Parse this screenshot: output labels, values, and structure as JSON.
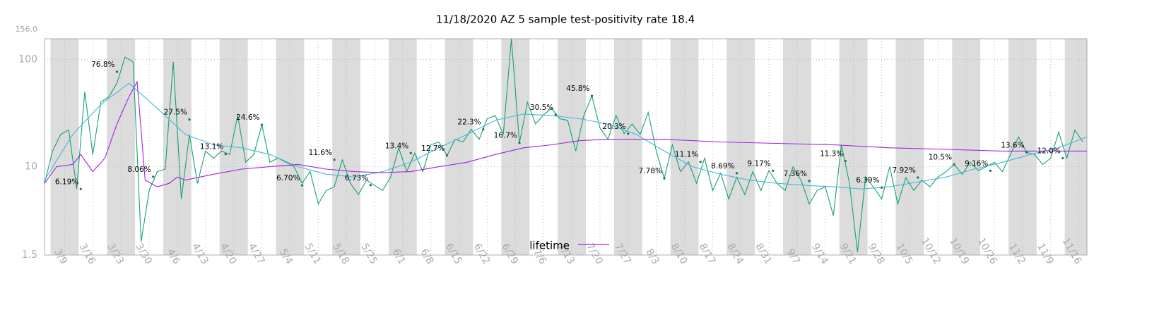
{
  "chart_data": {
    "type": "line",
    "title": "11/18/2020 AZ 5 sample test-positivity rate 18.4",
    "log_y": true,
    "grid": true,
    "legend": "bottom",
    "xlim": [
      "3/4",
      "11/18"
    ],
    "xticks": [
      "3/9",
      "3/16",
      "3/23",
      "3/30",
      "4/6",
      "4/13",
      "4/20",
      "4/27",
      "5/4",
      "5/11",
      "5/18",
      "5/25",
      "6/1",
      "6/8",
      "6/15",
      "6/22",
      "6/29",
      "7/6",
      "7/13",
      "7/20",
      "7/27",
      "8/3",
      "8/10",
      "8/17",
      "8/24",
      "8/31",
      "9/7",
      "9/14",
      "9/21",
      "9/28",
      "10/5",
      "10/12",
      "10/19",
      "10/26",
      "11/2",
      "11/9",
      "11/16"
    ],
    "ylim": [
      1.5,
      156
    ],
    "yticks": [
      1.5,
      10,
      100,
      {
        "value": 156,
        "label": "156.0"
      }
    ],
    "series": [
      {
        "color": "#14a07a",
        "x": [
          "3/4",
          "3/6",
          "3/8",
          "3/10",
          "3/12",
          "3/14",
          "3/16",
          "3/18",
          "3/20",
          "3/22",
          "3/24",
          "3/26",
          "3/28",
          "3/30",
          "4/1",
          "4/3",
          "4/5",
          "4/7",
          "4/9",
          "4/11",
          "4/13",
          "4/15",
          "4/17",
          "4/19",
          "4/21",
          "4/23",
          "4/25",
          "4/27",
          "4/29",
          "5/1",
          "5/3",
          "5/5",
          "5/7",
          "5/9",
          "5/11",
          "5/13",
          "5/15",
          "5/17",
          "5/19",
          "5/21",
          "5/23",
          "5/25",
          "5/27",
          "5/29",
          "5/31",
          "6/2",
          "6/4",
          "6/6",
          "6/8",
          "6/10",
          "6/12",
          "6/14",
          "6/16",
          "6/18",
          "6/20",
          "6/22",
          "6/24",
          "6/26",
          "6/28",
          "6/30",
          "7/2",
          "7/4",
          "7/6",
          "7/8",
          "7/10",
          "7/12",
          "7/14",
          "7/16",
          "7/18",
          "7/20",
          "7/22",
          "7/24",
          "7/26",
          "7/28",
          "7/30",
          "8/1",
          "8/3",
          "8/5",
          "8/7",
          "8/9",
          "8/11",
          "8/13",
          "8/15",
          "8/17",
          "8/19",
          "8/21",
          "8/23",
          "8/25",
          "8/27",
          "8/29",
          "8/31",
          "9/2",
          "9/4",
          "9/6",
          "9/8",
          "9/10",
          "9/12",
          "9/14",
          "9/16",
          "9/18",
          "9/20",
          "9/22",
          "9/24",
          "9/26",
          "9/28",
          "9/30",
          "10/2",
          "10/4",
          "10/6",
          "10/8",
          "10/10",
          "10/12",
          "10/14",
          "10/16",
          "10/18",
          "10/20",
          "10/22",
          "10/24",
          "10/26",
          "10/28",
          "10/30",
          "11/1",
          "11/3",
          "11/5",
          "11/7",
          "11/9",
          "11/11",
          "11/13",
          "11/15",
          "11/17"
        ],
        "values": [
          7,
          14,
          20,
          22,
          6.2,
          50,
          13,
          40,
          45,
          60,
          105,
          95,
          2.0,
          6,
          9,
          9.5,
          95,
          5,
          20,
          7,
          14,
          12,
          14,
          13,
          30,
          11,
          13,
          24.6,
          11,
          12,
          11,
          10,
          7,
          9,
          4.5,
          6,
          6.5,
          11.6,
          7,
          5.5,
          7.5,
          6.7,
          6,
          8,
          15,
          9,
          13.4,
          9,
          16,
          17,
          12.7,
          18,
          17,
          22.3,
          18,
          28,
          30,
          20,
          156,
          16.7,
          40,
          25,
          30.5,
          35,
          28,
          27,
          14,
          30,
          45.8,
          23,
          18,
          30,
          20.3,
          25,
          20,
          32,
          14,
          7.8,
          16,
          9,
          11.1,
          7,
          12,
          6,
          8.7,
          5,
          8,
          5.5,
          9,
          6,
          9.2,
          7,
          6,
          10,
          7.4,
          4.5,
          6,
          6.5,
          3.5,
          16,
          7,
          1.6,
          8,
          6.4,
          5,
          10,
          4.5,
          7.9,
          6,
          7.5,
          6.5,
          8,
          9,
          10.5,
          8.5,
          11,
          9.2,
          10,
          11,
          9,
          13,
          19,
          13.6,
          13,
          10.5,
          12,
          21,
          12,
          22,
          17
        ]
      },
      {
        "color": "#45b8e0",
        "x": [
          "3/4",
          "3/11",
          "3/18",
          "3/25",
          "4/1",
          "4/8",
          "4/15",
          "4/22",
          "4/29",
          "5/6",
          "5/13",
          "5/20",
          "5/27",
          "6/3",
          "6/10",
          "6/17",
          "6/24",
          "7/1",
          "7/8",
          "7/15",
          "7/22",
          "7/29",
          "8/5",
          "8/12",
          "8/19",
          "8/26",
          "9/2",
          "9/9",
          "9/16",
          "9/23",
          "9/30",
          "10/7",
          "10/14",
          "10/21",
          "10/28",
          "11/4",
          "11/11",
          "11/18"
        ],
        "values": [
          7.5,
          20,
          38,
          60,
          35,
          20,
          16,
          15,
          13,
          10,
          8.5,
          8,
          9,
          11,
          15,
          20,
          27,
          31,
          30,
          28,
          25,
          20,
          14,
          10,
          8.5,
          7.5,
          7,
          6.7,
          6.5,
          6.2,
          6.5,
          7.2,
          8,
          9.5,
          11,
          13,
          15,
          19
        ]
      },
      {
        "name": "lifetime",
        "color": "#a020e0",
        "x": [
          "3/4",
          "3/7",
          "3/11",
          "3/13",
          "3/16",
          "3/19",
          "3/22",
          "3/25",
          "3/27",
          "3/29",
          "4/1",
          "4/4",
          "4/6",
          "4/8",
          "4/15",
          "4/22",
          "4/29",
          "5/6",
          "5/13",
          "5/20",
          "5/27",
          "6/3",
          "6/10",
          "6/17",
          "6/24",
          "7/1",
          "7/8",
          "7/15",
          "7/22",
          "7/29",
          "8/5",
          "8/19",
          "9/2",
          "9/16",
          "9/30",
          "10/14",
          "10/28",
          "11/18"
        ],
        "values": [
          7,
          10,
          10.5,
          13,
          9,
          12,
          25,
          45,
          62,
          7.5,
          6.5,
          7,
          8,
          7.5,
          8.5,
          9.5,
          10,
          10.5,
          9.5,
          9,
          8.8,
          9,
          10,
          11,
          13,
          15,
          16,
          17.5,
          18,
          18,
          18,
          17,
          16.5,
          16,
          15,
          14.5,
          14,
          14
        ]
      }
    ],
    "annotations": [
      {
        "x": "3/13",
        "value": 6.19,
        "label": "6.19%"
      },
      {
        "x": "3/22",
        "value": 76.8,
        "label": "76.8%"
      },
      {
        "x": "3/31",
        "value": 8.06,
        "label": "8.06%"
      },
      {
        "x": "4/9",
        "value": 27.5,
        "label": "27.5%"
      },
      {
        "x": "4/18",
        "value": 13.1,
        "label": "13.1%"
      },
      {
        "x": "4/27",
        "value": 24.6,
        "label": "24.6%"
      },
      {
        "x": "5/7",
        "value": 6.7,
        "label": "6.70%"
      },
      {
        "x": "5/15",
        "value": 11.6,
        "label": "11.6%"
      },
      {
        "x": "5/24",
        "value": 6.73,
        "label": "6.73%"
      },
      {
        "x": "6/3",
        "value": 13.4,
        "label": "13.4%"
      },
      {
        "x": "6/12",
        "value": 12.7,
        "label": "12.7%"
      },
      {
        "x": "6/21",
        "value": 22.3,
        "label": "22.3%"
      },
      {
        "x": "6/30",
        "value": 16.7,
        "label": "16.7%"
      },
      {
        "x": "7/9",
        "value": 30.5,
        "label": "30.5%"
      },
      {
        "x": "7/18",
        "value": 45.8,
        "label": "45.8%"
      },
      {
        "x": "7/27",
        "value": 20.3,
        "label": "20.3%"
      },
      {
        "x": "8/5",
        "value": 7.78,
        "label": "7.78%"
      },
      {
        "x": "8/14",
        "value": 11.1,
        "label": "11.1%"
      },
      {
        "x": "8/23",
        "value": 8.69,
        "label": "8.69%"
      },
      {
        "x": "9/1",
        "value": 9.17,
        "label": "9.17%"
      },
      {
        "x": "9/10",
        "value": 7.36,
        "label": "7.36%"
      },
      {
        "x": "9/19",
        "value": 11.3,
        "label": "11.3%"
      },
      {
        "x": "9/28",
        "value": 6.39,
        "label": "6.39%"
      },
      {
        "x": "10/7",
        "value": 7.92,
        "label": "7.92%"
      },
      {
        "x": "10/16",
        "value": 10.5,
        "label": "10.5%"
      },
      {
        "x": "10/25",
        "value": 9.16,
        "label": "9.16%"
      },
      {
        "x": "11/3",
        "value": 13.6,
        "label": "13.6%"
      },
      {
        "x": "11/12",
        "value": 12.0,
        "label": "12.0%"
      }
    ]
  }
}
